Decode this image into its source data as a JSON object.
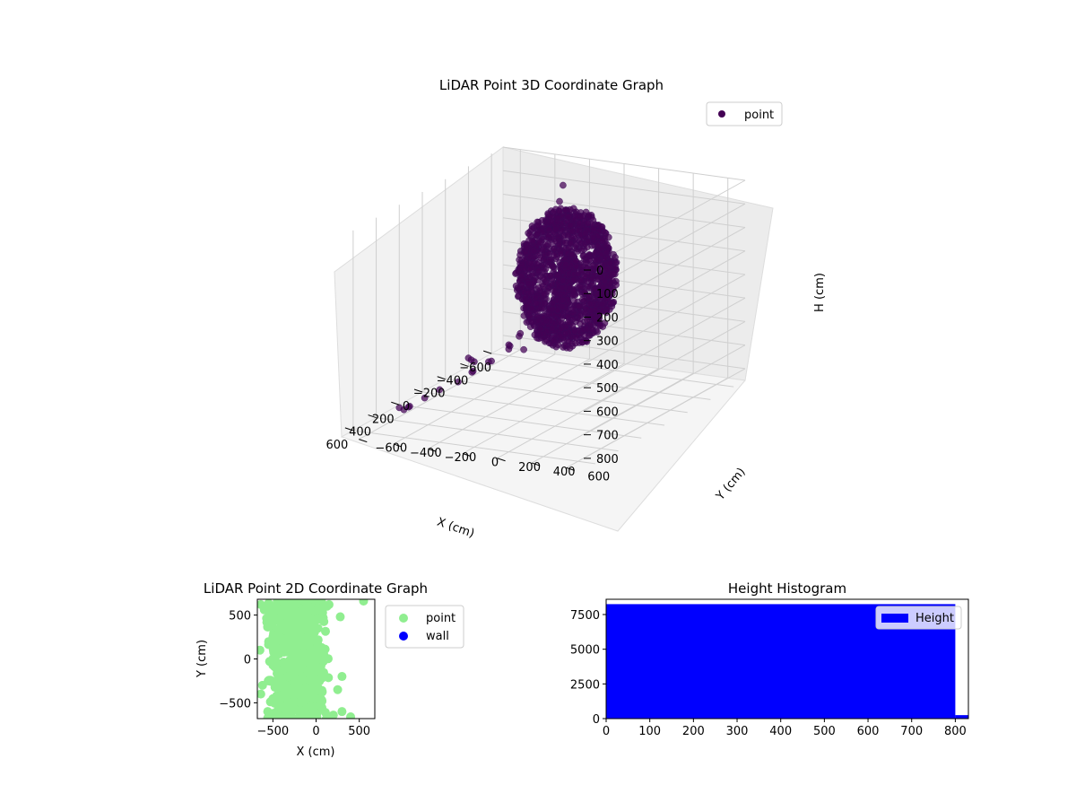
{
  "chart_data": [
    {
      "type": "scatter",
      "projection": "3d",
      "title": "LiDAR Point 3D Coordinate Graph",
      "xlabel": "X (cm)",
      "ylabel": "Y (cm)",
      "zlabel": "H (cm)",
      "xlim": [
        -700,
        700
      ],
      "ylim": [
        -700,
        700
      ],
      "zlim": [
        0,
        850
      ],
      "z_inverted": true,
      "x_ticks": [
        -600,
        -400,
        -200,
        0,
        200,
        400,
        600
      ],
      "y_ticks": [
        -600,
        -400,
        -200,
        0,
        200,
        400,
        600
      ],
      "z_ticks": [
        0,
        100,
        200,
        300,
        400,
        500,
        600,
        700,
        800
      ],
      "legend": [
        "point"
      ],
      "legend_position": "upper-right",
      "grid": true,
      "colors": {
        "point": "#440154",
        "point_edge": "#3b0a57"
      },
      "dense_cluster": {
        "center": [
          -200,
          0,
          350
        ],
        "radius": [
          220,
          260,
          300
        ]
      },
      "sparse_points": [
        [
          -620,
          -300,
          100
        ],
        [
          -560,
          -280,
          150
        ],
        [
          -500,
          -250,
          200
        ],
        [
          -440,
          -220,
          230
        ],
        [
          -380,
          -180,
          260
        ],
        [
          -320,
          -150,
          300
        ],
        [
          -260,
          -120,
          330
        ],
        [
          -660,
          -360,
          500
        ],
        [
          -640,
          -420,
          620
        ],
        [
          -620,
          -480,
          700
        ],
        [
          -600,
          -540,
          760
        ],
        [
          -580,
          -580,
          800
        ],
        [
          -500,
          -400,
          600
        ],
        [
          -460,
          -440,
          700
        ],
        [
          -420,
          -480,
          760
        ],
        [
          -300,
          -500,
          780
        ],
        [
          -200,
          -540,
          800
        ],
        [
          -100,
          -560,
          820
        ],
        [
          0,
          -600,
          830
        ],
        [
          100,
          -620,
          840
        ],
        [
          200,
          -640,
          850
        ],
        [
          300,
          -580,
          820
        ],
        [
          400,
          -540,
          800
        ],
        [
          500,
          -500,
          760
        ],
        [
          -150,
          -300,
          650
        ],
        [
          -50,
          -350,
          700
        ],
        [
          50,
          -380,
          720
        ],
        [
          150,
          -300,
          640
        ],
        [
          250,
          -250,
          600
        ],
        [
          350,
          -200,
          560
        ],
        [
          300,
          300,
          80
        ],
        [
          350,
          400,
          60
        ],
        [
          400,
          500,
          40
        ],
        [
          450,
          550,
          30
        ],
        [
          500,
          600,
          20
        ],
        [
          550,
          620,
          40
        ],
        [
          600,
          640,
          60
        ],
        [
          650,
          660,
          90
        ],
        [
          280,
          500,
          120
        ],
        [
          330,
          560,
          150
        ],
        [
          380,
          600,
          170
        ],
        [
          430,
          640,
          190
        ],
        [
          480,
          660,
          210
        ],
        [
          530,
          680,
          230
        ],
        [
          580,
          690,
          250
        ],
        [
          630,
          700,
          270
        ],
        [
          200,
          450,
          200
        ],
        [
          250,
          500,
          240
        ],
        [
          150,
          400,
          260
        ],
        [
          100,
          380,
          300
        ],
        [
          660,
          500,
          120
        ],
        [
          670,
          560,
          150
        ],
        [
          680,
          620,
          180
        ],
        [
          600,
          450,
          300
        ],
        [
          620,
          300,
          400
        ],
        [
          500,
          350,
          350
        ],
        [
          450,
          300,
          380
        ],
        [
          400,
          250,
          400
        ],
        [
          350,
          200,
          420
        ],
        [
          300,
          150,
          440
        ],
        [
          -580,
          -200,
          400
        ],
        [
          -540,
          -160,
          440
        ],
        [
          -500,
          -120,
          480
        ],
        [
          -460,
          -80,
          520
        ],
        [
          -420,
          -40,
          560
        ]
      ]
    },
    {
      "type": "scatter",
      "title": "LiDAR Point 2D Coordinate Graph",
      "xlabel": "X (cm)",
      "ylabel": "Y (cm)",
      "xlim": [
        -680,
        680
      ],
      "ylim": [
        -680,
        680
      ],
      "x_ticks": [
        -500,
        0,
        500
      ],
      "y_ticks": [
        -500,
        0,
        500
      ],
      "legend": [
        "point",
        "wall"
      ],
      "legend_position": "outside-right",
      "colors": {
        "point": "#90ee90",
        "wall": "#0000ff"
      },
      "dense_region": {
        "x_range": [
          -560,
          180
        ],
        "y_range": [
          -680,
          680
        ]
      },
      "extra_points": [
        [
          -640,
          620
        ],
        [
          -600,
          560
        ],
        [
          -650,
          100
        ],
        [
          -620,
          -300
        ],
        [
          -640,
          -400
        ],
        [
          -560,
          -600
        ],
        [
          -500,
          -660
        ],
        [
          200,
          -640
        ],
        [
          300,
          -600
        ],
        [
          400,
          -660
        ],
        [
          550,
          660
        ],
        [
          150,
          620
        ],
        [
          -450,
          650
        ],
        [
          -350,
          -650
        ],
        [
          280,
          480
        ],
        [
          250,
          -350
        ],
        [
          300,
          -200
        ]
      ]
    },
    {
      "type": "bar",
      "title": "Height Histogram",
      "legend": [
        "Height"
      ],
      "legend_position": "upper-right",
      "xlim": [
        0,
        830
      ],
      "ylim": [
        0,
        8600
      ],
      "x_ticks": [
        0,
        100,
        200,
        300,
        400,
        500,
        600,
        700,
        800
      ],
      "y_ticks": [
        0,
        2500,
        5000,
        7500
      ],
      "colors": {
        "bar": "#0000ff",
        "legend_box": "#ffffff"
      },
      "bins": [
        {
          "x0": 0,
          "x1": 800,
          "value": 8250
        },
        {
          "x0": 800,
          "x1": 830,
          "value": 250
        }
      ]
    }
  ]
}
